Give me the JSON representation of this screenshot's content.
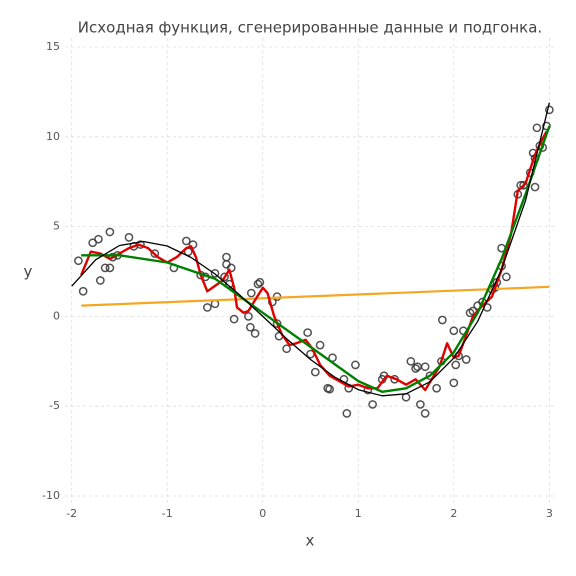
{
  "chart_data": {
    "type": "scatter",
    "title": "Исходная функция, сгенерированные данные и подгонка.",
    "x_label": "x",
    "y_label": "y",
    "xlim": [
      -2.07,
      3.08
    ],
    "ylim": [
      -10.5,
      15.5
    ],
    "xticks": [
      -2,
      -1,
      0,
      1,
      2,
      3
    ],
    "yticks": [
      -10,
      -5,
      0,
      5,
      10,
      15
    ],
    "grid": true,
    "series": [
      {
        "mode": "markers",
        "color": "#333333",
        "x": [
          -1.93,
          -1.88,
          -1.78,
          -1.72,
          -1.7,
          -1.65,
          -1.6,
          -1.6,
          -1.57,
          -1.52,
          -1.4,
          -1.35,
          -1.28,
          -1.13,
          -0.93,
          -0.8,
          -0.78,
          -0.73,
          -0.65,
          -0.6,
          -0.58,
          -0.5,
          -0.5,
          -0.4,
          -0.38,
          -0.38,
          -0.35,
          -0.33,
          -0.3,
          -0.15,
          -0.13,
          -0.12,
          -0.08,
          -0.05,
          -0.03,
          0.1,
          0.15,
          0.15,
          0.17,
          0.25,
          0.47,
          0.5,
          0.55,
          0.6,
          0.68,
          0.7,
          0.73,
          0.85,
          0.88,
          0.9,
          0.97,
          1.1,
          1.15,
          1.25,
          1.27,
          1.38,
          1.5,
          1.55,
          1.6,
          1.62,
          1.65,
          1.7,
          1.7,
          1.75,
          1.82,
          1.87,
          1.88,
          2.0,
          2.0,
          2.02,
          2.05,
          2.1,
          2.13,
          2.17,
          2.2,
          2.25,
          2.3,
          2.35,
          2.4,
          2.43,
          2.45,
          2.5,
          2.5,
          2.55,
          2.67,
          2.7,
          2.73,
          2.8,
          2.83,
          2.85,
          2.85,
          2.87,
          2.9,
          2.93,
          2.97,
          3.0
        ],
        "y": [
          3.1,
          1.4,
          4.1,
          4.3,
          2.0,
          2.7,
          4.7,
          2.7,
          3.3,
          3.4,
          4.4,
          3.9,
          4.0,
          3.5,
          2.7,
          4.2,
          3.6,
          4.0,
          2.3,
          2.2,
          0.5,
          0.7,
          2.4,
          2.2,
          2.9,
          3.3,
          1.8,
          2.7,
          -0.15,
          0.0,
          -0.6,
          1.3,
          -0.95,
          1.8,
          1.9,
          0.8,
          1.1,
          -0.4,
          -1.1,
          -1.8,
          -0.9,
          -2.1,
          -3.1,
          -1.6,
          -4.0,
          -4.05,
          -2.3,
          -3.5,
          -5.4,
          -4.0,
          -2.7,
          -4.1,
          -4.9,
          -3.5,
          -3.3,
          -3.5,
          -4.5,
          -2.5,
          -2.9,
          -2.8,
          -4.9,
          -5.4,
          -2.8,
          -3.3,
          -4.0,
          -2.5,
          -0.2,
          -3.7,
          -0.8,
          -2.7,
          -2.2,
          -0.8,
          -2.4,
          0.2,
          0.3,
          0.6,
          0.8,
          0.5,
          1.5,
          1.6,
          1.9,
          2.8,
          3.8,
          2.2,
          6.8,
          7.3,
          7.3,
          8.0,
          9.1,
          7.2,
          8.8,
          10.5,
          9.5,
          9.4,
          10.6,
          11.5
        ]
      },
      {
        "mode": "line",
        "color": "#f5a623",
        "width": 2.2,
        "x": [
          -1.9,
          3.0
        ],
        "y": [
          0.6,
          1.65
        ]
      },
      {
        "mode": "line",
        "color": "#e00000",
        "width": 2.4,
        "x": [
          -1.9,
          -1.8,
          -1.7,
          -1.6,
          -1.5,
          -1.4,
          -1.3,
          -1.2,
          -1.1,
          -1.0,
          -0.9,
          -0.8,
          -0.75,
          -0.7,
          -0.65,
          -0.58,
          -0.5,
          -0.42,
          -0.35,
          -0.3,
          -0.27,
          -0.2,
          -0.15,
          -0.07,
          0,
          0.05,
          0.12,
          0.2,
          0.28,
          0.35,
          0.45,
          0.52,
          0.6,
          0.7,
          0.8,
          0.9,
          1.0,
          1.1,
          1.2,
          1.3,
          1.4,
          1.5,
          1.6,
          1.7,
          1.78,
          1.85,
          1.93,
          2.0,
          2.05,
          2.12,
          2.2,
          2.3,
          2.4,
          2.5,
          2.6,
          2.67,
          2.75,
          2.85,
          2.92,
          2.97
        ],
        "y": [
          2.3,
          3.6,
          3.5,
          3.2,
          3.5,
          3.8,
          4.0,
          3.8,
          3.3,
          3.0,
          3.3,
          3.8,
          3.9,
          3.3,
          2.3,
          1.4,
          1.7,
          2.0,
          2.6,
          1.6,
          0.5,
          0.2,
          0.3,
          1.0,
          1.6,
          1.3,
          0.0,
          -1.0,
          -1.6,
          -1.5,
          -1.3,
          -1.8,
          -2.7,
          -3.3,
          -3.6,
          -3.9,
          -3.8,
          -4.0,
          -4.0,
          -3.3,
          -3.5,
          -3.8,
          -3.5,
          -4.1,
          -3.4,
          -2.8,
          -1.5,
          -2.3,
          -2.2,
          -1.2,
          0.0,
          0.6,
          1.1,
          2.6,
          4.6,
          7.0,
          7.4,
          9.0,
          9.8,
          10.3
        ]
      },
      {
        "mode": "line",
        "color": "#008000",
        "width": 2.4,
        "x": [
          -1.9,
          -1.5,
          -1,
          -0.5,
          0,
          0.5,
          1,
          1.25,
          1.5,
          1.75,
          2,
          2.25,
          2.5,
          2.75,
          3
        ],
        "y": [
          3.4,
          3.4,
          3.0,
          2.1,
          0.2,
          -1.7,
          -3.6,
          -4.2,
          -4.0,
          -3.3,
          -2.0,
          0.2,
          3.2,
          6.8,
          10.6
        ]
      },
      {
        "mode": "line",
        "color": "#000000",
        "width": 1.3,
        "x": [
          -2,
          -1.75,
          -1.5,
          -1.25,
          -1,
          -0.75,
          -0.5,
          -0.25,
          0,
          0.25,
          0.5,
          0.75,
          1,
          1.25,
          1.5,
          1.75,
          2,
          2.25,
          2.5,
          2.75,
          3
        ],
        "y": [
          1.68,
          3.15,
          3.95,
          4.17,
          3.92,
          3.28,
          2.36,
          1.23,
          0,
          -1.24,
          -2.4,
          -3.37,
          -4.08,
          -4.42,
          -4.31,
          -3.64,
          -2.32,
          -0.27,
          2.63,
          6.44,
          11.9
        ]
      }
    ]
  }
}
